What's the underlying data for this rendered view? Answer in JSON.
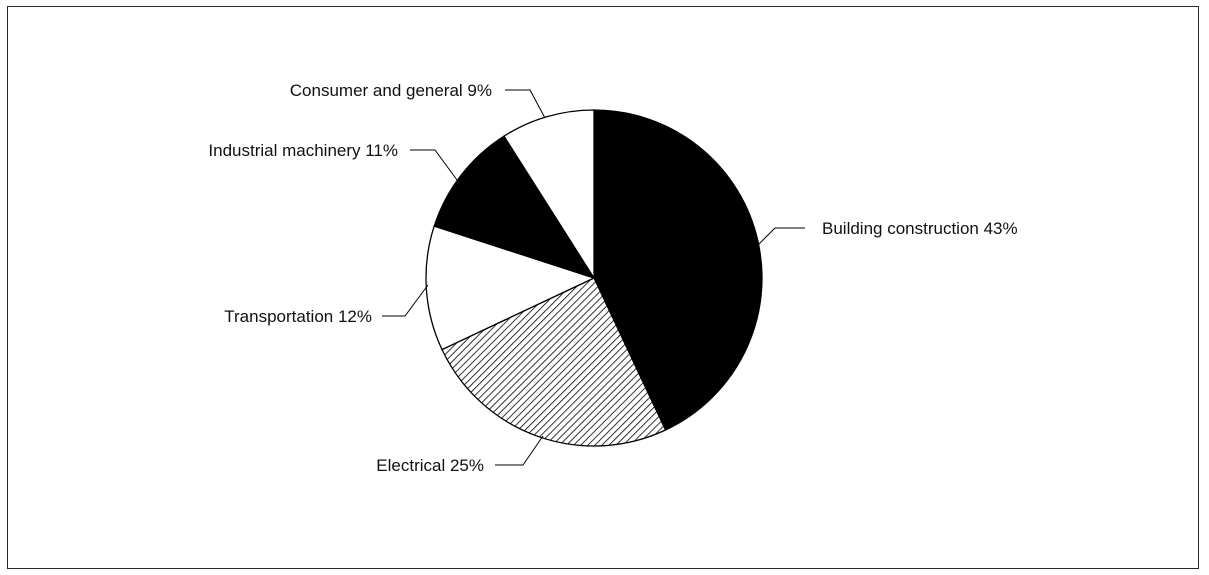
{
  "chart_data": {
    "type": "pie",
    "title": "",
    "slices": [
      {
        "label": "Building construction 43%",
        "value": 43,
        "fill": "solid-black"
      },
      {
        "label": "Electrical 25%",
        "value": 25,
        "fill": "hatched"
      },
      {
        "label": "Transportation 12%",
        "value": 12,
        "fill": "white"
      },
      {
        "label": "Industrial machinery 11%",
        "value": 11,
        "fill": "solid-black"
      },
      {
        "label": "Consumer and general 9%",
        "value": 9,
        "fill": "white"
      }
    ],
    "legend": "none",
    "colors": {
      "black": "#000000",
      "white": "#ffffff",
      "hatch": "#000000"
    }
  }
}
